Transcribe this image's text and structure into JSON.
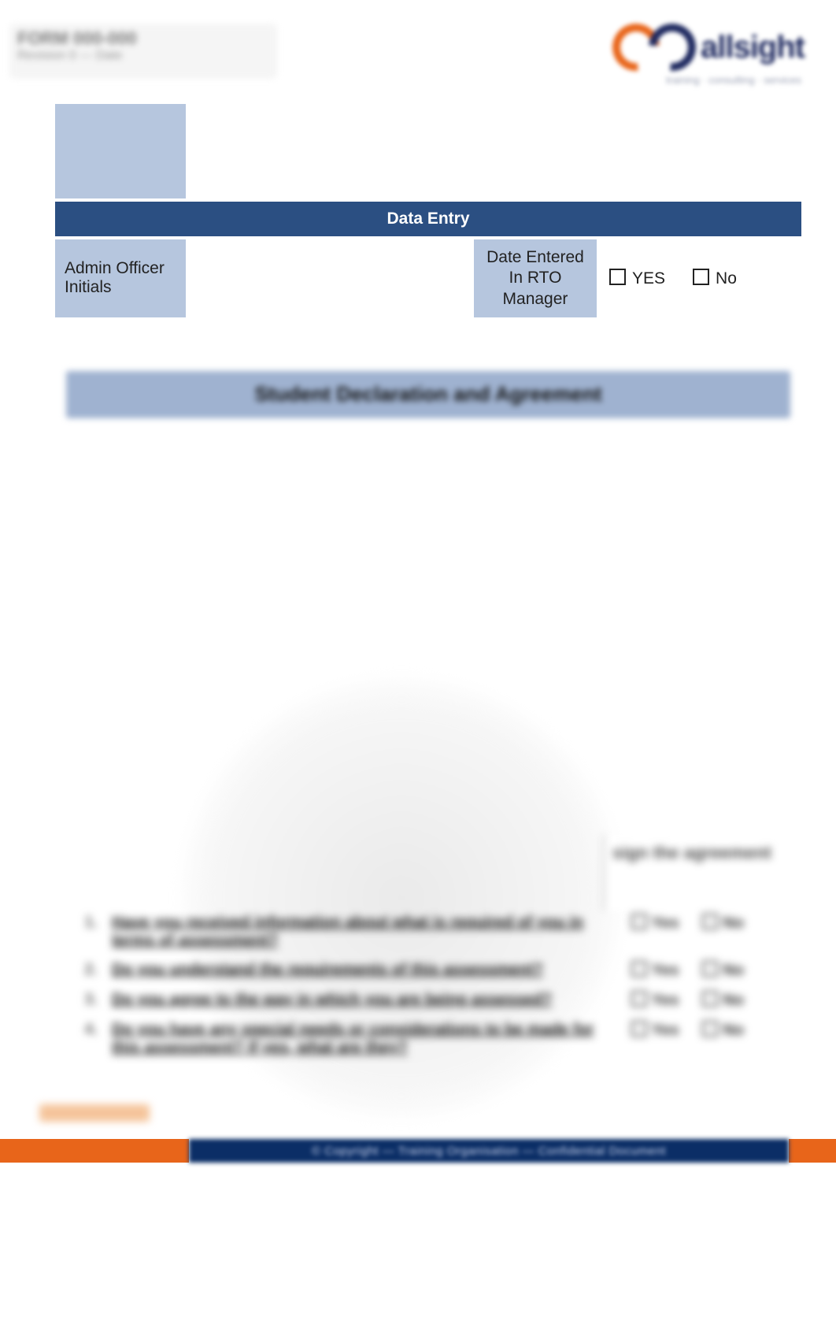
{
  "topLeft": {
    "line1": "FORM 000-000",
    "line2": "Revision 0 — Date"
  },
  "logo": {
    "word": "allsight",
    "sub": "training · consulting · services"
  },
  "table": {
    "row1": {
      "label": "",
      "value": ""
    },
    "band": "Data Entry",
    "admin": {
      "leftLabel": "Admin Officer Initials",
      "midLabel": "Date Entered In RTO Manager",
      "yes": "YES",
      "no": "No"
    }
  },
  "heading2": "Student Declaration and Agreement",
  "sigLabel": "sign the agreement",
  "questions": [
    {
      "n": "1.",
      "t": "Have you received information about what is required of you in terms of assessment?",
      "y": "Yes",
      "no": "No"
    },
    {
      "n": "2.",
      "t": "Do you understand the requirements of this assessment?",
      "y": "Yes",
      "no": "No"
    },
    {
      "n": "3.",
      "t": "Do you agree to the way in which you are being assessed?",
      "y": "Yes",
      "no": "No"
    },
    {
      "n": "4.",
      "t": "Do you have any special needs or considerations to be made for this assessment? If yes, what are they?",
      "y": "Yes",
      "no": "No"
    }
  ],
  "footer": {
    "mid": "© Copyright — Training Organisation — Confidential Document"
  }
}
